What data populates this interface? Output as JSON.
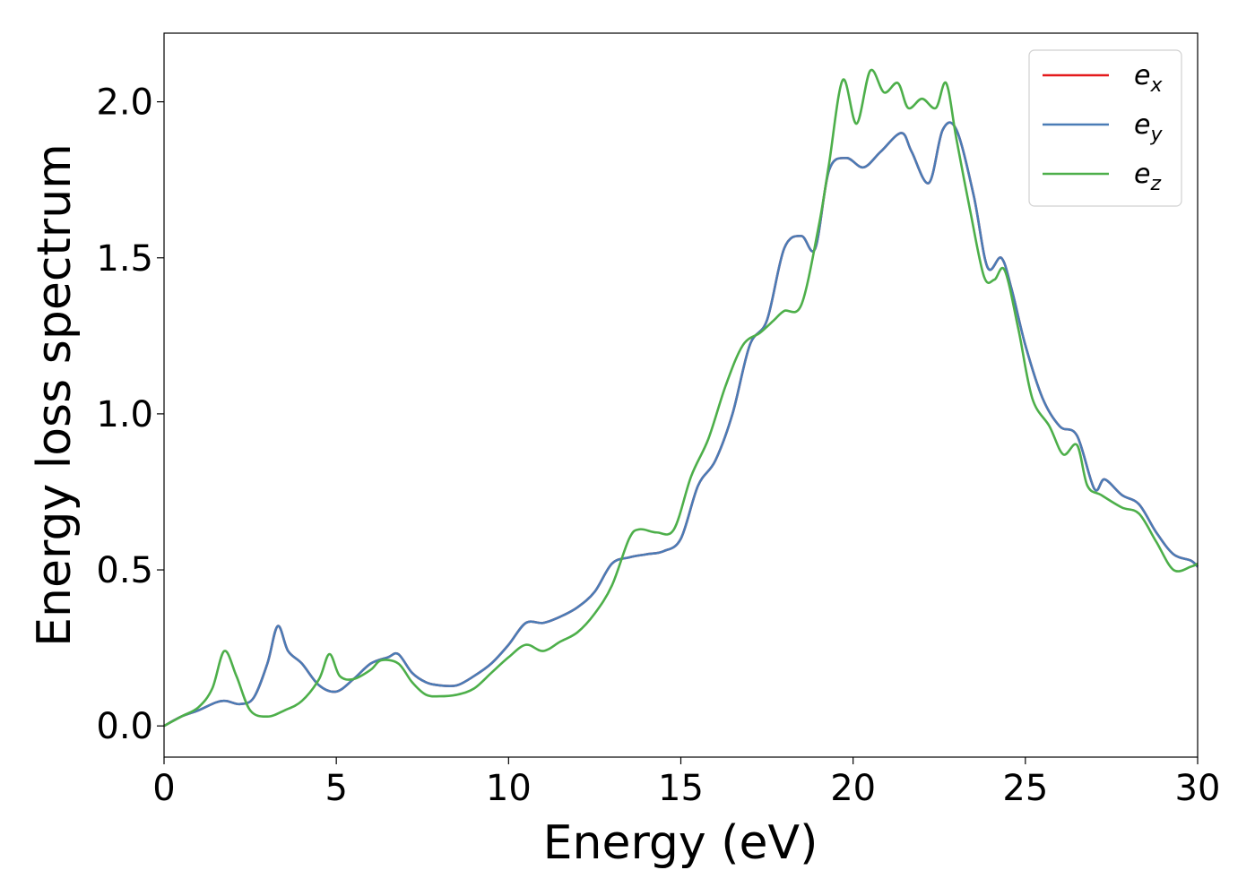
{
  "chart_data": {
    "type": "line",
    "title": "",
    "xlabel": "Energy (eV)",
    "ylabel": "Energy loss spectrum",
    "xlim": [
      0,
      30
    ],
    "ylim": [
      -0.1,
      2.22
    ],
    "xticks": [
      0,
      5,
      10,
      15,
      20,
      25,
      30
    ],
    "xtick_labels": [
      "0",
      "5",
      "10",
      "15",
      "20",
      "25",
      "30"
    ],
    "yticks": [
      0.0,
      0.5,
      1.0,
      1.5,
      2.0
    ],
    "ytick_labels": [
      "0.0",
      "0.5",
      "1.0",
      "1.5",
      "2.0"
    ],
    "grid": false,
    "legend_position": "top-right",
    "series": [
      {
        "name": "e_x",
        "legend_base": "e",
        "legend_sub": "x",
        "color": "#e41a1c",
        "x": [
          0,
          0.5,
          1,
          1.5,
          1.8,
          2.2,
          2.6,
          3.0,
          3.3,
          3.6,
          4.0,
          4.5,
          5.0,
          5.5,
          6.0,
          6.5,
          6.8,
          7.2,
          7.6,
          8.0,
          8.5,
          9.0,
          9.5,
          10.0,
          10.5,
          11.0,
          11.5,
          12.0,
          12.5,
          13.0,
          13.5,
          14.0,
          14.5,
          15.0,
          15.5,
          16.0,
          16.5,
          17.0,
          17.5,
          18.0,
          18.5,
          18.9,
          19.3,
          19.8,
          20.3,
          20.8,
          21.4,
          21.7,
          22.2,
          22.6,
          23.0,
          23.5,
          23.9,
          24.3,
          24.6,
          25.0,
          25.5,
          26.0,
          26.5,
          27.0,
          27.3,
          27.8,
          28.3,
          28.8,
          29.3,
          29.8,
          30.0
        ],
        "y": [
          0,
          0.03,
          0.05,
          0.075,
          0.08,
          0.07,
          0.09,
          0.2,
          0.32,
          0.24,
          0.2,
          0.13,
          0.11,
          0.15,
          0.2,
          0.22,
          0.23,
          0.17,
          0.14,
          0.13,
          0.13,
          0.16,
          0.2,
          0.26,
          0.33,
          0.33,
          0.35,
          0.38,
          0.43,
          0.52,
          0.54,
          0.55,
          0.56,
          0.6,
          0.77,
          0.85,
          1.0,
          1.22,
          1.3,
          1.53,
          1.57,
          1.53,
          1.78,
          1.82,
          1.79,
          1.84,
          1.9,
          1.84,
          1.74,
          1.91,
          1.91,
          1.7,
          1.47,
          1.5,
          1.4,
          1.22,
          1.05,
          0.96,
          0.93,
          0.76,
          0.79,
          0.74,
          0.71,
          0.62,
          0.55,
          0.53,
          0.51
        ]
      },
      {
        "name": "e_y",
        "legend_base": "e",
        "legend_sub": "y",
        "color": "#4a7cb6",
        "x": [
          0,
          0.5,
          1,
          1.5,
          1.8,
          2.2,
          2.6,
          3.0,
          3.3,
          3.6,
          4.0,
          4.5,
          5.0,
          5.5,
          6.0,
          6.5,
          6.8,
          7.2,
          7.6,
          8.0,
          8.5,
          9.0,
          9.5,
          10.0,
          10.5,
          11.0,
          11.5,
          12.0,
          12.5,
          13.0,
          13.5,
          14.0,
          14.5,
          15.0,
          15.5,
          16.0,
          16.5,
          17.0,
          17.5,
          18.0,
          18.5,
          18.9,
          19.3,
          19.8,
          20.3,
          20.8,
          21.4,
          21.7,
          22.2,
          22.6,
          23.0,
          23.5,
          23.9,
          24.3,
          24.6,
          25.0,
          25.5,
          26.0,
          26.5,
          27.0,
          27.3,
          27.8,
          28.3,
          28.8,
          29.3,
          29.8,
          30.0
        ],
        "y": [
          0,
          0.03,
          0.05,
          0.075,
          0.08,
          0.07,
          0.09,
          0.2,
          0.32,
          0.24,
          0.2,
          0.13,
          0.11,
          0.15,
          0.2,
          0.22,
          0.23,
          0.17,
          0.14,
          0.13,
          0.13,
          0.16,
          0.2,
          0.26,
          0.33,
          0.33,
          0.35,
          0.38,
          0.43,
          0.52,
          0.54,
          0.55,
          0.56,
          0.6,
          0.77,
          0.85,
          1.0,
          1.22,
          1.3,
          1.53,
          1.57,
          1.53,
          1.78,
          1.82,
          1.79,
          1.84,
          1.9,
          1.84,
          1.74,
          1.91,
          1.91,
          1.7,
          1.47,
          1.5,
          1.4,
          1.22,
          1.05,
          0.96,
          0.93,
          0.76,
          0.79,
          0.74,
          0.71,
          0.62,
          0.55,
          0.53,
          0.51
        ]
      },
      {
        "name": "e_z",
        "legend_base": "e",
        "legend_sub": "z",
        "color": "#4daf4a",
        "x": [
          0,
          0.5,
          1,
          1.4,
          1.75,
          2.1,
          2.5,
          3.0,
          3.5,
          4.0,
          4.5,
          4.8,
          5.1,
          5.5,
          6.0,
          6.3,
          6.8,
          7.2,
          7.6,
          8.0,
          8.5,
          9.0,
          9.5,
          10.0,
          10.5,
          11.0,
          11.5,
          12.0,
          12.5,
          13.0,
          13.5,
          13.8,
          14.3,
          14.8,
          15.3,
          15.8,
          16.3,
          16.8,
          17.3,
          17.7,
          18.0,
          18.5,
          19.0,
          19.3,
          19.7,
          20.1,
          20.5,
          20.9,
          21.3,
          21.6,
          22.0,
          22.4,
          22.7,
          23.0,
          23.4,
          23.8,
          24.1,
          24.4,
          24.8,
          25.2,
          25.7,
          26.1,
          26.5,
          26.8,
          27.2,
          27.8,
          28.3,
          28.8,
          29.3,
          29.8,
          30.0
        ],
        "y": [
          0,
          0.03,
          0.06,
          0.12,
          0.24,
          0.16,
          0.05,
          0.03,
          0.05,
          0.08,
          0.15,
          0.23,
          0.16,
          0.15,
          0.18,
          0.21,
          0.2,
          0.14,
          0.1,
          0.095,
          0.1,
          0.12,
          0.17,
          0.22,
          0.26,
          0.24,
          0.27,
          0.3,
          0.36,
          0.45,
          0.6,
          0.63,
          0.62,
          0.63,
          0.8,
          0.92,
          1.09,
          1.22,
          1.26,
          1.3,
          1.33,
          1.35,
          1.6,
          1.8,
          2.07,
          1.93,
          2.1,
          2.03,
          2.06,
          1.98,
          2.01,
          1.98,
          2.06,
          1.88,
          1.65,
          1.44,
          1.43,
          1.46,
          1.27,
          1.05,
          0.96,
          0.87,
          0.9,
          0.77,
          0.74,
          0.7,
          0.68,
          0.59,
          0.5,
          0.51,
          0.52
        ]
      }
    ]
  }
}
